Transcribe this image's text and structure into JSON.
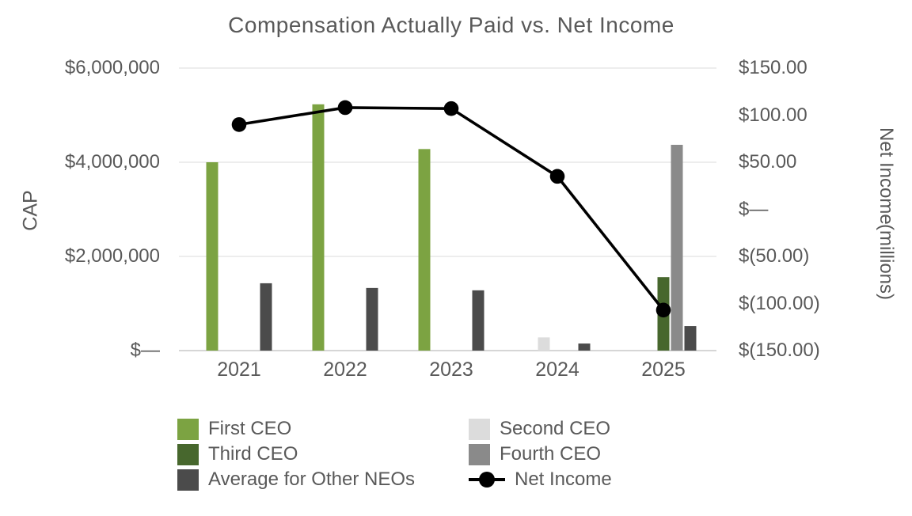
{
  "chart_data": {
    "type": "combo-bar-line",
    "title": "Compensation Actually Paid vs. Net Income",
    "categories": [
      "2021",
      "2022",
      "2023",
      "2024",
      "2025"
    ],
    "series": [
      {
        "name": "First CEO",
        "type": "bar",
        "axis": "left",
        "color": "#7CA342",
        "values": [
          4000000,
          5230000,
          4280000,
          null,
          null
        ]
      },
      {
        "name": "Second CEO",
        "type": "bar",
        "axis": "left",
        "color": "#DCDCDC",
        "values": [
          null,
          null,
          null,
          280000,
          null
        ]
      },
      {
        "name": "Third CEO",
        "type": "bar",
        "axis": "left",
        "color": "#47672D",
        "values": [
          null,
          null,
          null,
          null,
          1560000
        ]
      },
      {
        "name": "Fourth CEO",
        "type": "bar",
        "axis": "left",
        "color": "#8A8A8A",
        "values": [
          null,
          null,
          null,
          null,
          4370000
        ]
      },
      {
        "name": "Average for Other NEOs",
        "type": "bar",
        "axis": "left",
        "color": "#4B4B4B",
        "values": [
          1430000,
          1330000,
          1280000,
          150000,
          520000
        ]
      },
      {
        "name": "Net Income",
        "type": "line",
        "axis": "right",
        "color": "#000000",
        "values": [
          90,
          108,
          107,
          35,
          -107
        ]
      }
    ],
    "left_axis": {
      "title": "CAP",
      "tick_labels": [
        "$6,000,000",
        "$4,000,000",
        "$2,000,000",
        "$—"
      ],
      "tick_values": [
        6000000,
        4000000,
        2000000,
        0
      ],
      "range": [
        0,
        6000000
      ]
    },
    "right_axis": {
      "title_lines": [
        "Net Income",
        "(millions)"
      ],
      "tick_labels": [
        "$150.00",
        "$100.00",
        "$50.00",
        "$—",
        "$(50.00)",
        "$(100.00)",
        "$(150.00)"
      ],
      "tick_values": [
        150,
        100,
        50,
        0,
        -50,
        -100,
        -150
      ],
      "range": [
        -150,
        150
      ]
    },
    "gridline_values": [
      6000000,
      4000000,
      2000000
    ],
    "legend": {
      "columns": [
        [
          {
            "label": "First CEO",
            "swatch": "bar",
            "color": "#7CA342"
          },
          {
            "label": "Third CEO",
            "swatch": "bar",
            "color": "#47672D"
          },
          {
            "label": "Average for Other NEOs",
            "swatch": "bar",
            "color": "#4B4B4B"
          }
        ],
        [
          {
            "label": "Second CEO",
            "swatch": "bar",
            "color": "#DCDCDC"
          },
          {
            "label": "Fourth CEO",
            "swatch": "bar",
            "color": "#8A8A8A"
          },
          {
            "label": "Net Income",
            "swatch": "line",
            "color": "#000000"
          }
        ]
      ]
    }
  },
  "colors": {
    "text": "#595959",
    "gridline": "#E2E2E2",
    "axis_line": "#C9C9C9",
    "background": "#FFFFFF"
  }
}
